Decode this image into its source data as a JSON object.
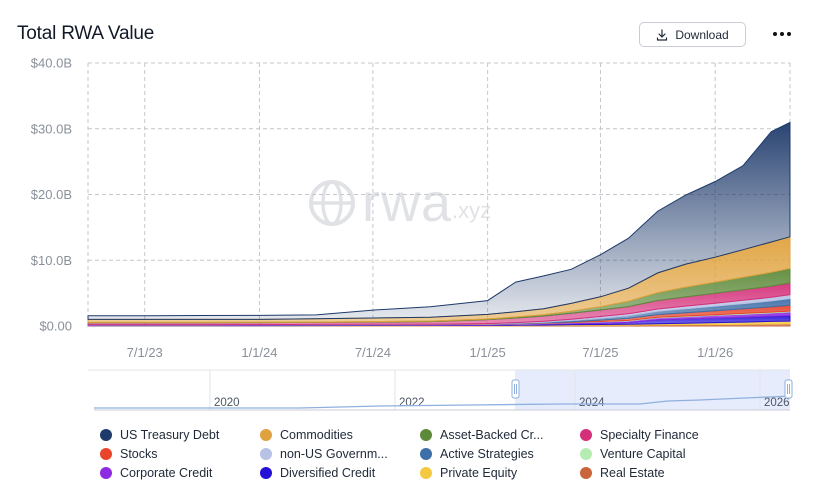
{
  "header": {
    "title": "Total RWA Value",
    "download_label": "Download"
  },
  "watermark": {
    "main": "rwa",
    "sub": ".xyz"
  },
  "chart_data": {
    "type": "area",
    "stacked": true,
    "title": "Total RWA Value",
    "xlabel": "",
    "ylabel": "",
    "x_ticks": [
      "7/1/23",
      "1/1/24",
      "7/1/24",
      "1/1/25",
      "7/1/25",
      "1/1/26"
    ],
    "y_ticks": [
      "$0.00",
      "$10.0B",
      "$20.0B",
      "$30.0B",
      "$40.0B"
    ],
    "ylim": [
      0,
      40
    ],
    "y_unit": "$B",
    "x_range": [
      "2023-04-01",
      "2026-05-01"
    ],
    "grid": true,
    "legend_position": "bottom",
    "x": [
      "2023-04-01",
      "2023-07-01",
      "2023-10-01",
      "2024-01-01",
      "2024-04-01",
      "2024-07-01",
      "2024-10-01",
      "2025-01-01",
      "2025-02-15",
      "2025-04-01",
      "2025-05-15",
      "2025-07-01",
      "2025-08-15",
      "2025-10-01",
      "2025-11-15",
      "2026-01-01",
      "2026-02-15",
      "2026-04-01",
      "2026-05-01"
    ],
    "series": [
      {
        "name": "Real Estate",
        "color": "#c9653a",
        "values": [
          0.02,
          0.02,
          0.02,
          0.02,
          0.03,
          0.03,
          0.03,
          0.04,
          0.05,
          0.06,
          0.08,
          0.1,
          0.12,
          0.15,
          0.18,
          0.22,
          0.25,
          0.3,
          0.32
        ]
      },
      {
        "name": "Private Equity",
        "color": "#f5c842",
        "values": [
          0.02,
          0.02,
          0.02,
          0.03,
          0.03,
          0.04,
          0.04,
          0.05,
          0.06,
          0.08,
          0.1,
          0.13,
          0.16,
          0.2,
          0.25,
          0.3,
          0.35,
          0.4,
          0.42
        ]
      },
      {
        "name": "Diversified Credit",
        "color": "#2510d8",
        "values": [
          0.05,
          0.05,
          0.05,
          0.05,
          0.06,
          0.06,
          0.07,
          0.08,
          0.1,
          0.12,
          0.15,
          0.2,
          0.25,
          0.6,
          0.65,
          0.7,
          0.75,
          0.8,
          0.85
        ]
      },
      {
        "name": "Corporate Credit",
        "color": "#8c2be2",
        "values": [
          0.05,
          0.05,
          0.05,
          0.05,
          0.05,
          0.06,
          0.06,
          0.08,
          0.1,
          0.12,
          0.15,
          0.2,
          0.25,
          0.3,
          0.35,
          0.4,
          0.45,
          0.5,
          0.55
        ]
      },
      {
        "name": "Venture Capital",
        "color": "#b4ecb4",
        "values": [
          0.02,
          0.02,
          0.02,
          0.02,
          0.02,
          0.02,
          0.02,
          0.03,
          0.03,
          0.04,
          0.05,
          0.06,
          0.07,
          0.08,
          0.09,
          0.1,
          0.11,
          0.12,
          0.12
        ]
      },
      {
        "name": "Stocks",
        "color": "#e8452c",
        "values": [
          0.01,
          0.01,
          0.01,
          0.01,
          0.01,
          0.01,
          0.01,
          0.02,
          0.03,
          0.05,
          0.1,
          0.2,
          0.3,
          0.4,
          0.5,
          0.6,
          0.7,
          0.8,
          0.9
        ]
      },
      {
        "name": "Active Strategies",
        "color": "#3f6fa8",
        "values": [
          0.01,
          0.01,
          0.01,
          0.01,
          0.01,
          0.01,
          0.01,
          0.02,
          0.05,
          0.1,
          0.2,
          0.3,
          0.4,
          0.5,
          0.6,
          0.7,
          0.8,
          0.9,
          1.0
        ]
      },
      {
        "name": "non-US Government Debt",
        "color": "#b7c2e4",
        "values": [
          0.02,
          0.02,
          0.02,
          0.02,
          0.03,
          0.03,
          0.03,
          0.05,
          0.1,
          0.15,
          0.2,
          0.25,
          0.3,
          0.35,
          0.4,
          0.45,
          0.5,
          0.55,
          0.6
        ]
      },
      {
        "name": "Specialty Finance",
        "color": "#d4307a",
        "values": [
          0.3,
          0.3,
          0.3,
          0.3,
          0.3,
          0.35,
          0.4,
          0.6,
          0.7,
          0.8,
          0.9,
          1.0,
          1.1,
          1.3,
          1.4,
          1.5,
          1.6,
          1.7,
          1.8
        ]
      },
      {
        "name": "Asset-Backed Credit",
        "color": "#5d8a3a",
        "values": [
          0.05,
          0.05,
          0.05,
          0.05,
          0.05,
          0.06,
          0.07,
          0.1,
          0.15,
          0.2,
          0.3,
          0.5,
          0.8,
          1.2,
          1.5,
          1.7,
          1.9,
          2.1,
          2.2
        ]
      },
      {
        "name": "Commodities",
        "color": "#e0a23e",
        "values": [
          0.45,
          0.45,
          0.45,
          0.45,
          0.5,
          0.55,
          0.6,
          0.7,
          0.8,
          0.9,
          1.2,
          1.5,
          2.0,
          3.0,
          3.5,
          3.8,
          4.2,
          4.6,
          4.8
        ]
      },
      {
        "name": "US Treasury Debt",
        "color": "#1e3a6b",
        "values": [
          0.55,
          0.55,
          0.6,
          0.6,
          0.6,
          1.2,
          1.6,
          2.1,
          4.5,
          5.0,
          5.2,
          6.4,
          7.6,
          9.4,
          10.5,
          11.5,
          12.8,
          16.8,
          17.4
        ]
      }
    ]
  },
  "navigator": {
    "year_labels": [
      "2020",
      "2022",
      "2024",
      "2026"
    ]
  },
  "legend": {
    "items": [
      {
        "label": "US Treasury Debt",
        "color": "#1e3a6b"
      },
      {
        "label": "Commodities",
        "color": "#e0a23e"
      },
      {
        "label": "Asset-Backed Cr...",
        "color": "#5d8a3a"
      },
      {
        "label": "Specialty Finance",
        "color": "#d4307a"
      },
      {
        "label": "Stocks",
        "color": "#e8452c"
      },
      {
        "label": "non-US Governm...",
        "color": "#b7c2e4"
      },
      {
        "label": "Active Strategies",
        "color": "#3f6fa8"
      },
      {
        "label": "Venture Capital",
        "color": "#b4ecb4"
      },
      {
        "label": "Corporate Credit",
        "color": "#8c2be2"
      },
      {
        "label": "Diversified Credit",
        "color": "#2510d8"
      },
      {
        "label": "Private Equity",
        "color": "#f5c842"
      },
      {
        "label": "Real Estate",
        "color": "#c9653a"
      }
    ]
  }
}
